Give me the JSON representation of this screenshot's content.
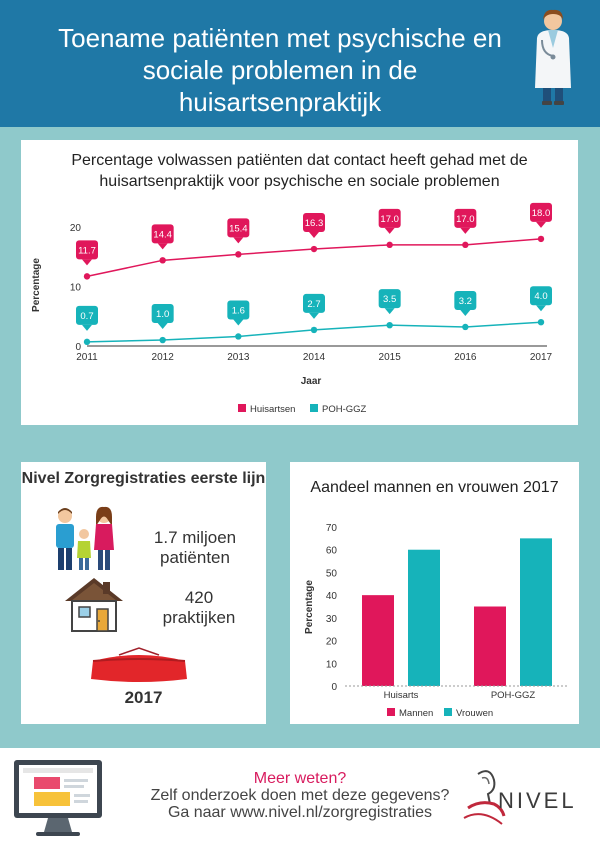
{
  "header": {
    "title": "Toename patiënten met psychische en sociale problemen in de huisartsenpraktijk"
  },
  "colors": {
    "header_bg": "#1f78a6",
    "page_bg": "#8fc9cb",
    "huisartsen": "#e0175b",
    "poh_ggz": "#16b3ba",
    "footer_accent": "#d81b5e"
  },
  "line_chart_card": {
    "title": "Percentage volwassen patiënten dat contact heeft gehad met de huisartsenpraktijk voor psychische en sociale problemen"
  },
  "registration": {
    "title": "Nivel Zorgregistraties eerste lijn",
    "patients": "1.7 miljoen patiënten",
    "practices": "420 praktijken",
    "year": "2017",
    "icons": [
      "family-icon",
      "house-icon",
      "table-icon"
    ]
  },
  "bar_chart_card": {
    "title": "Aandeel mannen en vrouwen 2017"
  },
  "chart_data": [
    {
      "type": "line",
      "title": "Percentage volwassen patiënten dat contact heeft gehad met de huisartsenpraktijk voor psychische en sociale problemen",
      "xlabel": "Jaar",
      "ylabel": "Percentage",
      "x": [
        "2011",
        "2012",
        "2013",
        "2014",
        "2015",
        "2016",
        "2017"
      ],
      "ylim": [
        0,
        20
      ],
      "yticks": [
        "0",
        "10",
        "20"
      ],
      "series": [
        {
          "name": "Huisartsen",
          "values": [
            11.7,
            14.4,
            15.4,
            16.3,
            17.0,
            17.0,
            18.0
          ],
          "labels": [
            "11.7",
            "14.4",
            "15.4",
            "16.3",
            "17.0",
            "17.0",
            "18.0"
          ],
          "color": "#e0175b"
        },
        {
          "name": "POH-GGZ",
          "values": [
            0.7,
            1.0,
            1.6,
            2.7,
            3.5,
            3.2,
            4.0
          ],
          "labels": [
            "0.7",
            "1.0",
            "1.6",
            "2.7",
            "3.5",
            "3.2",
            "4.0"
          ],
          "color": "#16b3ba"
        }
      ],
      "legend": "bottom",
      "grid": false
    },
    {
      "type": "bar",
      "title": "Aandeel mannen en vrouwen 2017",
      "xlabel": "",
      "ylabel": "Percentage",
      "categories": [
        "Huisarts",
        "POH-GGZ"
      ],
      "ylim": [
        0,
        70
      ],
      "yticks": [
        "0",
        "10",
        "20",
        "30",
        "40",
        "50",
        "60",
        "70"
      ],
      "series": [
        {
          "name": "Mannen",
          "values": [
            40,
            35
          ],
          "color": "#e0175b"
        },
        {
          "name": "Vrouwen",
          "values": [
            60,
            65
          ],
          "color": "#16b3ba"
        }
      ],
      "legend": "bottom",
      "grid": false
    }
  ],
  "footer": {
    "line1": "Meer weten?",
    "line2": "Zelf onderzoek doen met deze gegevens?",
    "line3": "Ga naar www.nivel.nl/zorgregistraties",
    "logo_text": "NIVEL"
  }
}
